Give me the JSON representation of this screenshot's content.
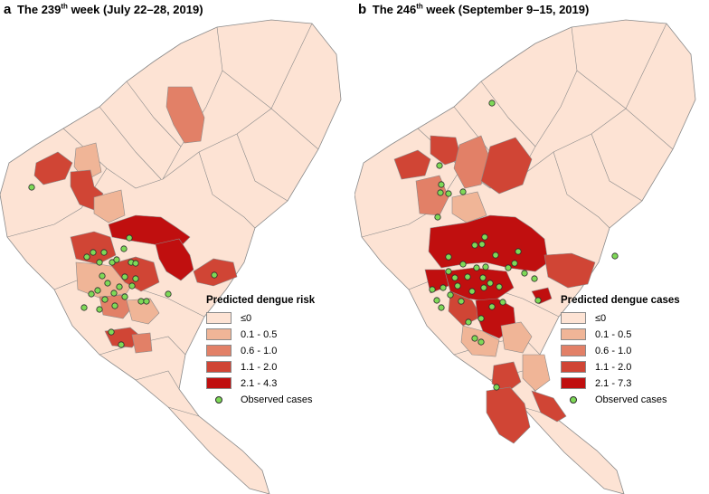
{
  "colors": {
    "le0": "#fde3d4",
    "c01_05": "#f0b597",
    "c06_10": "#e28067",
    "c11_20": "#d04535",
    "c21_max": "#c00f0f",
    "border": "#8a8a8a",
    "case": "#7ed957"
  },
  "panels": [
    {
      "letter": "a",
      "title_pre": "The 239",
      "title_sup": "th",
      "title_post": " week (July 22–28, 2019)",
      "legend_title": "Predicted dengue risk",
      "legend_items": [
        {
          "label": "≤0",
          "color_key": "le0"
        },
        {
          "label": "0.1 - 0.5",
          "color_key": "c01_05"
        },
        {
          "label": "0.6 - 1.0",
          "color_key": "c06_10"
        },
        {
          "label": "1.1 - 2.0",
          "color_key": "c11_20"
        },
        {
          "label": "2.1 - 4.3",
          "color_key": "c21_max"
        }
      ],
      "observed_label": "Observed cases"
    },
    {
      "letter": "b",
      "title_pre": "The 246",
      "title_sup": "th",
      "title_post": " week (September 9–15, 2019)",
      "legend_title": "Predicted dengue cases",
      "legend_items": [
        {
          "label": "≤0",
          "color_key": "le0"
        },
        {
          "label": "0.1 - 0.5",
          "color_key": "c01_05"
        },
        {
          "label": "0.6 - 1.0",
          "color_key": "c06_10"
        },
        {
          "label": "1.1 - 2.0",
          "color_key": "c11_20"
        },
        {
          "label": "2.1 - 7.3",
          "color_key": "c21_max"
        }
      ],
      "observed_label": "Observed cases"
    }
  ]
}
